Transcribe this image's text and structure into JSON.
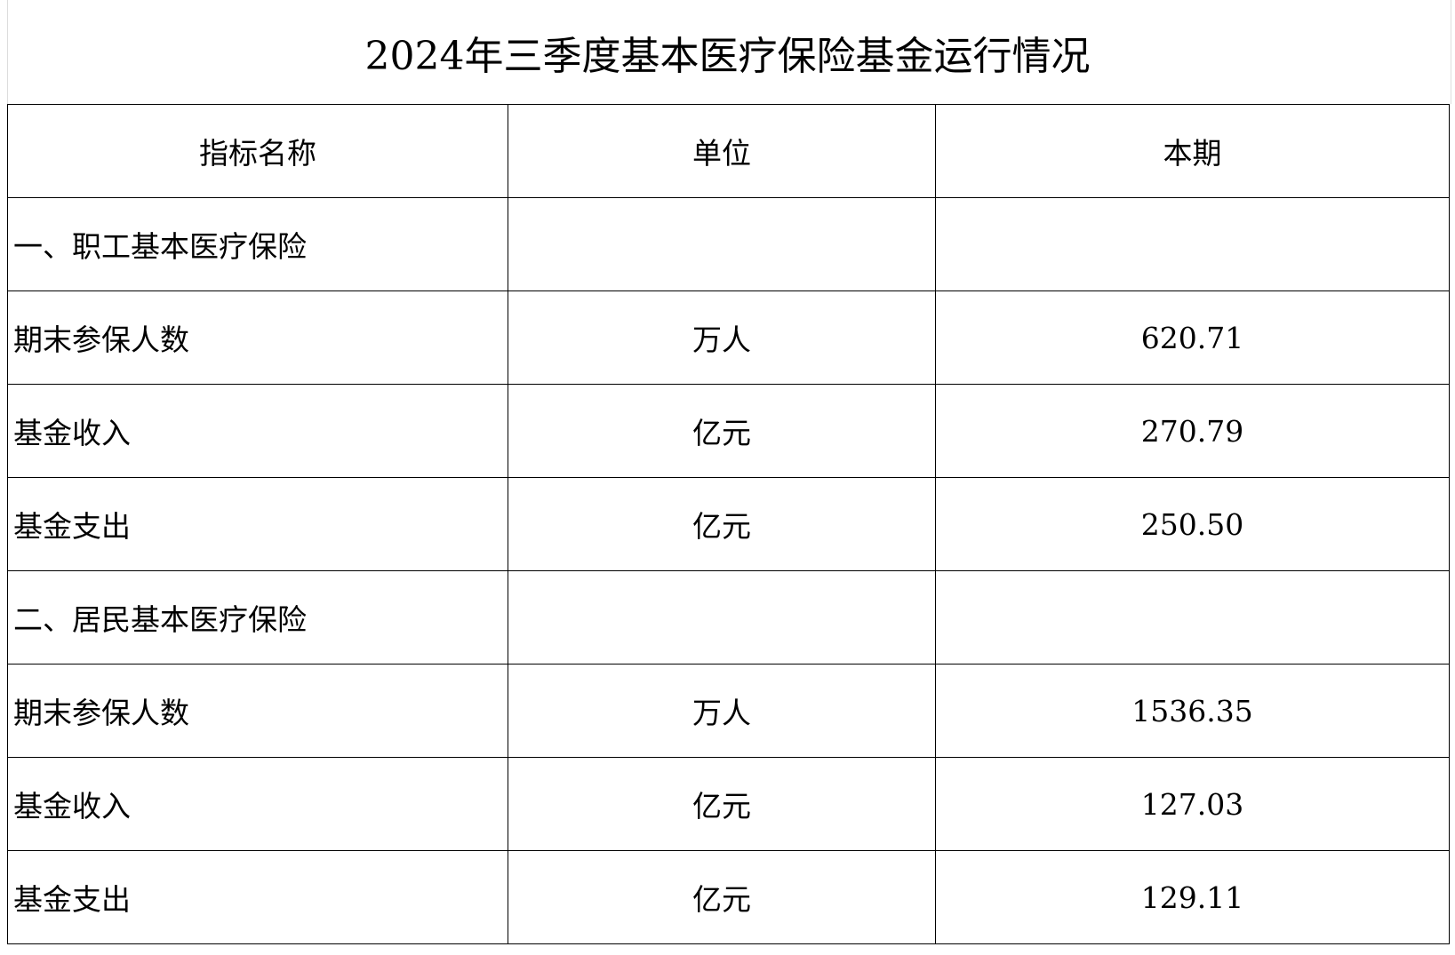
{
  "title": "2024年三季度基本医疗保险基金运行情况",
  "headers": [
    "指标名称",
    "单位",
    "本期"
  ],
  "rows": [
    [
      "一、职工基本医疗保险",
      "",
      ""
    ],
    [
      "期末参保人数",
      "万人",
      "620.71"
    ],
    [
      "基金收入",
      "亿元",
      "270.79"
    ],
    [
      "基金支出",
      "亿元",
      "250.50"
    ],
    [
      "二、居民基本医疗保险",
      "",
      ""
    ],
    [
      "期末参保人数",
      "万人",
      "1536.35"
    ],
    [
      "基金收入",
      "亿元",
      "127.03"
    ],
    [
      "基金支出",
      "亿元",
      "129.11"
    ]
  ]
}
